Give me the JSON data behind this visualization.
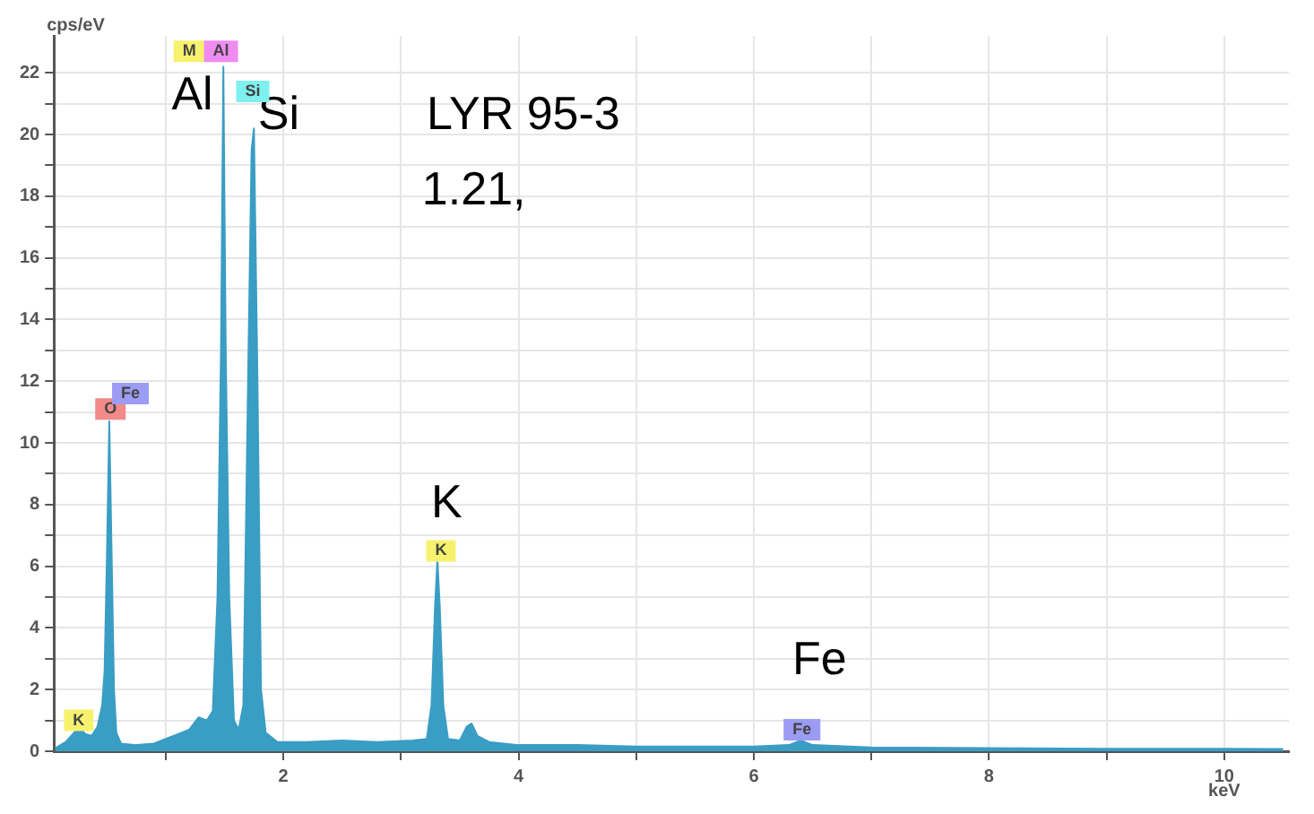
{
  "chart_data": {
    "type": "area",
    "xlabel": "keV",
    "ylabel": "cps/eV",
    "xlim": [
      0.05,
      10.55
    ],
    "ylim": [
      0,
      23.2
    ],
    "xticks": [
      {
        "value": 1,
        "label": null
      },
      2,
      {
        "value": 3,
        "label": null
      },
      4,
      {
        "value": 5,
        "label": null
      },
      6,
      {
        "value": 7,
        "label": null
      },
      8,
      {
        "value": 9,
        "label": null
      },
      10
    ],
    "yticks": [
      0,
      {
        "value": 1,
        "label": null
      },
      2,
      {
        "value": 3,
        "label": null
      },
      4,
      {
        "value": 5,
        "label": null
      },
      6,
      {
        "value": 7,
        "label": null
      },
      8,
      {
        "value": 9,
        "label": null
      },
      10,
      {
        "value": 11,
        "label": null
      },
      12,
      {
        "value": 13,
        "label": null
      },
      14,
      {
        "value": 15,
        "label": null
      },
      16,
      {
        "value": 17,
        "label": null
      },
      18,
      {
        "value": 19,
        "label": null
      },
      20,
      {
        "value": 21,
        "label": null
      },
      22
    ],
    "grid": true,
    "legend": false,
    "series": [
      {
        "color": "#3a9dc4",
        "x": [
          0.06,
          0.15,
          0.22,
          0.27,
          0.32,
          0.37,
          0.42,
          0.46,
          0.48,
          0.5,
          0.52,
          0.54,
          0.56,
          0.58,
          0.62,
          0.75,
          0.9,
          1.0,
          1.1,
          1.2,
          1.28,
          1.35,
          1.4,
          1.44,
          1.47,
          1.49,
          1.51,
          1.54,
          1.58,
          1.62,
          1.66,
          1.7,
          1.73,
          1.75,
          1.78,
          1.81,
          1.85,
          1.95,
          2.2,
          2.5,
          2.8,
          3.1,
          3.22,
          3.26,
          3.29,
          3.31,
          3.33,
          3.36,
          3.4,
          3.5,
          3.56,
          3.6,
          3.65,
          3.75,
          4.0,
          4.5,
          5.0,
          5.5,
          6.0,
          6.3,
          6.4,
          6.5,
          7.0,
          8.0,
          9.0,
          10.0,
          10.5
        ],
        "values": [
          0.1,
          0.3,
          0.6,
          0.75,
          0.55,
          0.5,
          0.8,
          1.5,
          2.6,
          6.3,
          10.7,
          6.4,
          2.0,
          0.6,
          0.25,
          0.2,
          0.25,
          0.4,
          0.55,
          0.7,
          1.1,
          1.0,
          1.3,
          5.0,
          13,
          22.2,
          13,
          5.0,
          1.0,
          0.7,
          1.5,
          12,
          19.5,
          20.2,
          12,
          2.0,
          0.6,
          0.3,
          0.3,
          0.35,
          0.3,
          0.35,
          0.4,
          1.5,
          4.7,
          6.2,
          4.7,
          1.5,
          0.4,
          0.35,
          0.8,
          0.9,
          0.5,
          0.3,
          0.2,
          0.2,
          0.15,
          0.15,
          0.15,
          0.2,
          0.35,
          0.2,
          0.12,
          0.1,
          0.08,
          0.08,
          0.07
        ]
      }
    ],
    "annotations": [
      "Al",
      "Si",
      "LYR 95-3",
      "1.21,",
      "K",
      "Fe",
      {
        "text": "M",
        "x": 1.2,
        "y": 22.7
      },
      {
        "text": "Al",
        "x": 1.47,
        "y": 22.7
      },
      {
        "text": "Si",
        "x": 1.74,
        "y": 21.4
      },
      {
        "text": "O",
        "x": 0.53,
        "y": 11.1
      },
      {
        "text": "Fe",
        "x": 0.7,
        "y": 11.6
      },
      {
        "text": "K",
        "x": 3.34,
        "y": 6.5
      },
      {
        "text": "K",
        "x": 0.26,
        "y": 1.0
      },
      {
        "text": "Fe",
        "x": 6.41,
        "y": 0.7
      }
    ]
  }
}
